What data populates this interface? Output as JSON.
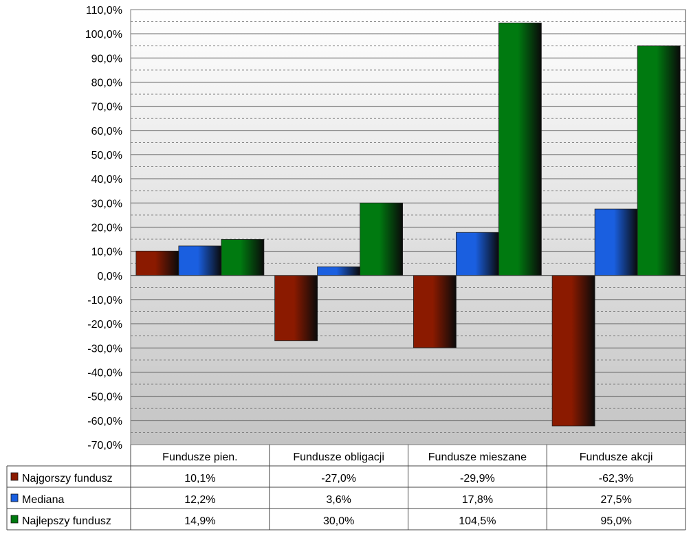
{
  "chart_data": {
    "type": "bar",
    "title": "",
    "xlabel": "",
    "ylabel": "",
    "categories": [
      "Fundusze pien.",
      "Fundusze obligacji",
      "Fundusze mieszane",
      "Fundusze akcji"
    ],
    "series": [
      {
        "name": "Najgorszy fundusz",
        "values": [
          10.1,
          -27.0,
          -29.9,
          -62.3
        ],
        "labels": [
          "10,1%",
          "-27,0%",
          "-29,9%",
          "-62,3%"
        ],
        "color": "#8b1a00"
      },
      {
        "name": "Mediana",
        "values": [
          12.2,
          3.6,
          17.8,
          27.5
        ],
        "labels": [
          "12,2%",
          "3,6%",
          "17,8%",
          "27,5%"
        ],
        "color": "#1a5fe0"
      },
      {
        "name": "Najlepszy fundusz",
        "values": [
          14.9,
          30.0,
          104.5,
          95.0
        ],
        "labels": [
          "14,9%",
          "30,0%",
          "104,5%",
          "95,0%"
        ],
        "color": "#007a10"
      }
    ],
    "ylim": [
      -70,
      110
    ],
    "yticks": [
      110,
      100,
      90,
      80,
      70,
      60,
      50,
      40,
      30,
      20,
      10,
      0,
      -10,
      -20,
      -30,
      -40,
      -50,
      -60,
      -70
    ],
    "ytick_labels": [
      "110,0%",
      "100,0%",
      "90,0%",
      "80,0%",
      "70,0%",
      "60,0%",
      "50,0%",
      "40,0%",
      "30,0%",
      "20,0%",
      "10,0%",
      "0,0%",
      "-10,0%",
      "-20,0%",
      "-30,0%",
      "-40,0%",
      "-50,0%",
      "-60,0%",
      "-70,0%"
    ],
    "grid": true,
    "legend": "data-table-below"
  }
}
